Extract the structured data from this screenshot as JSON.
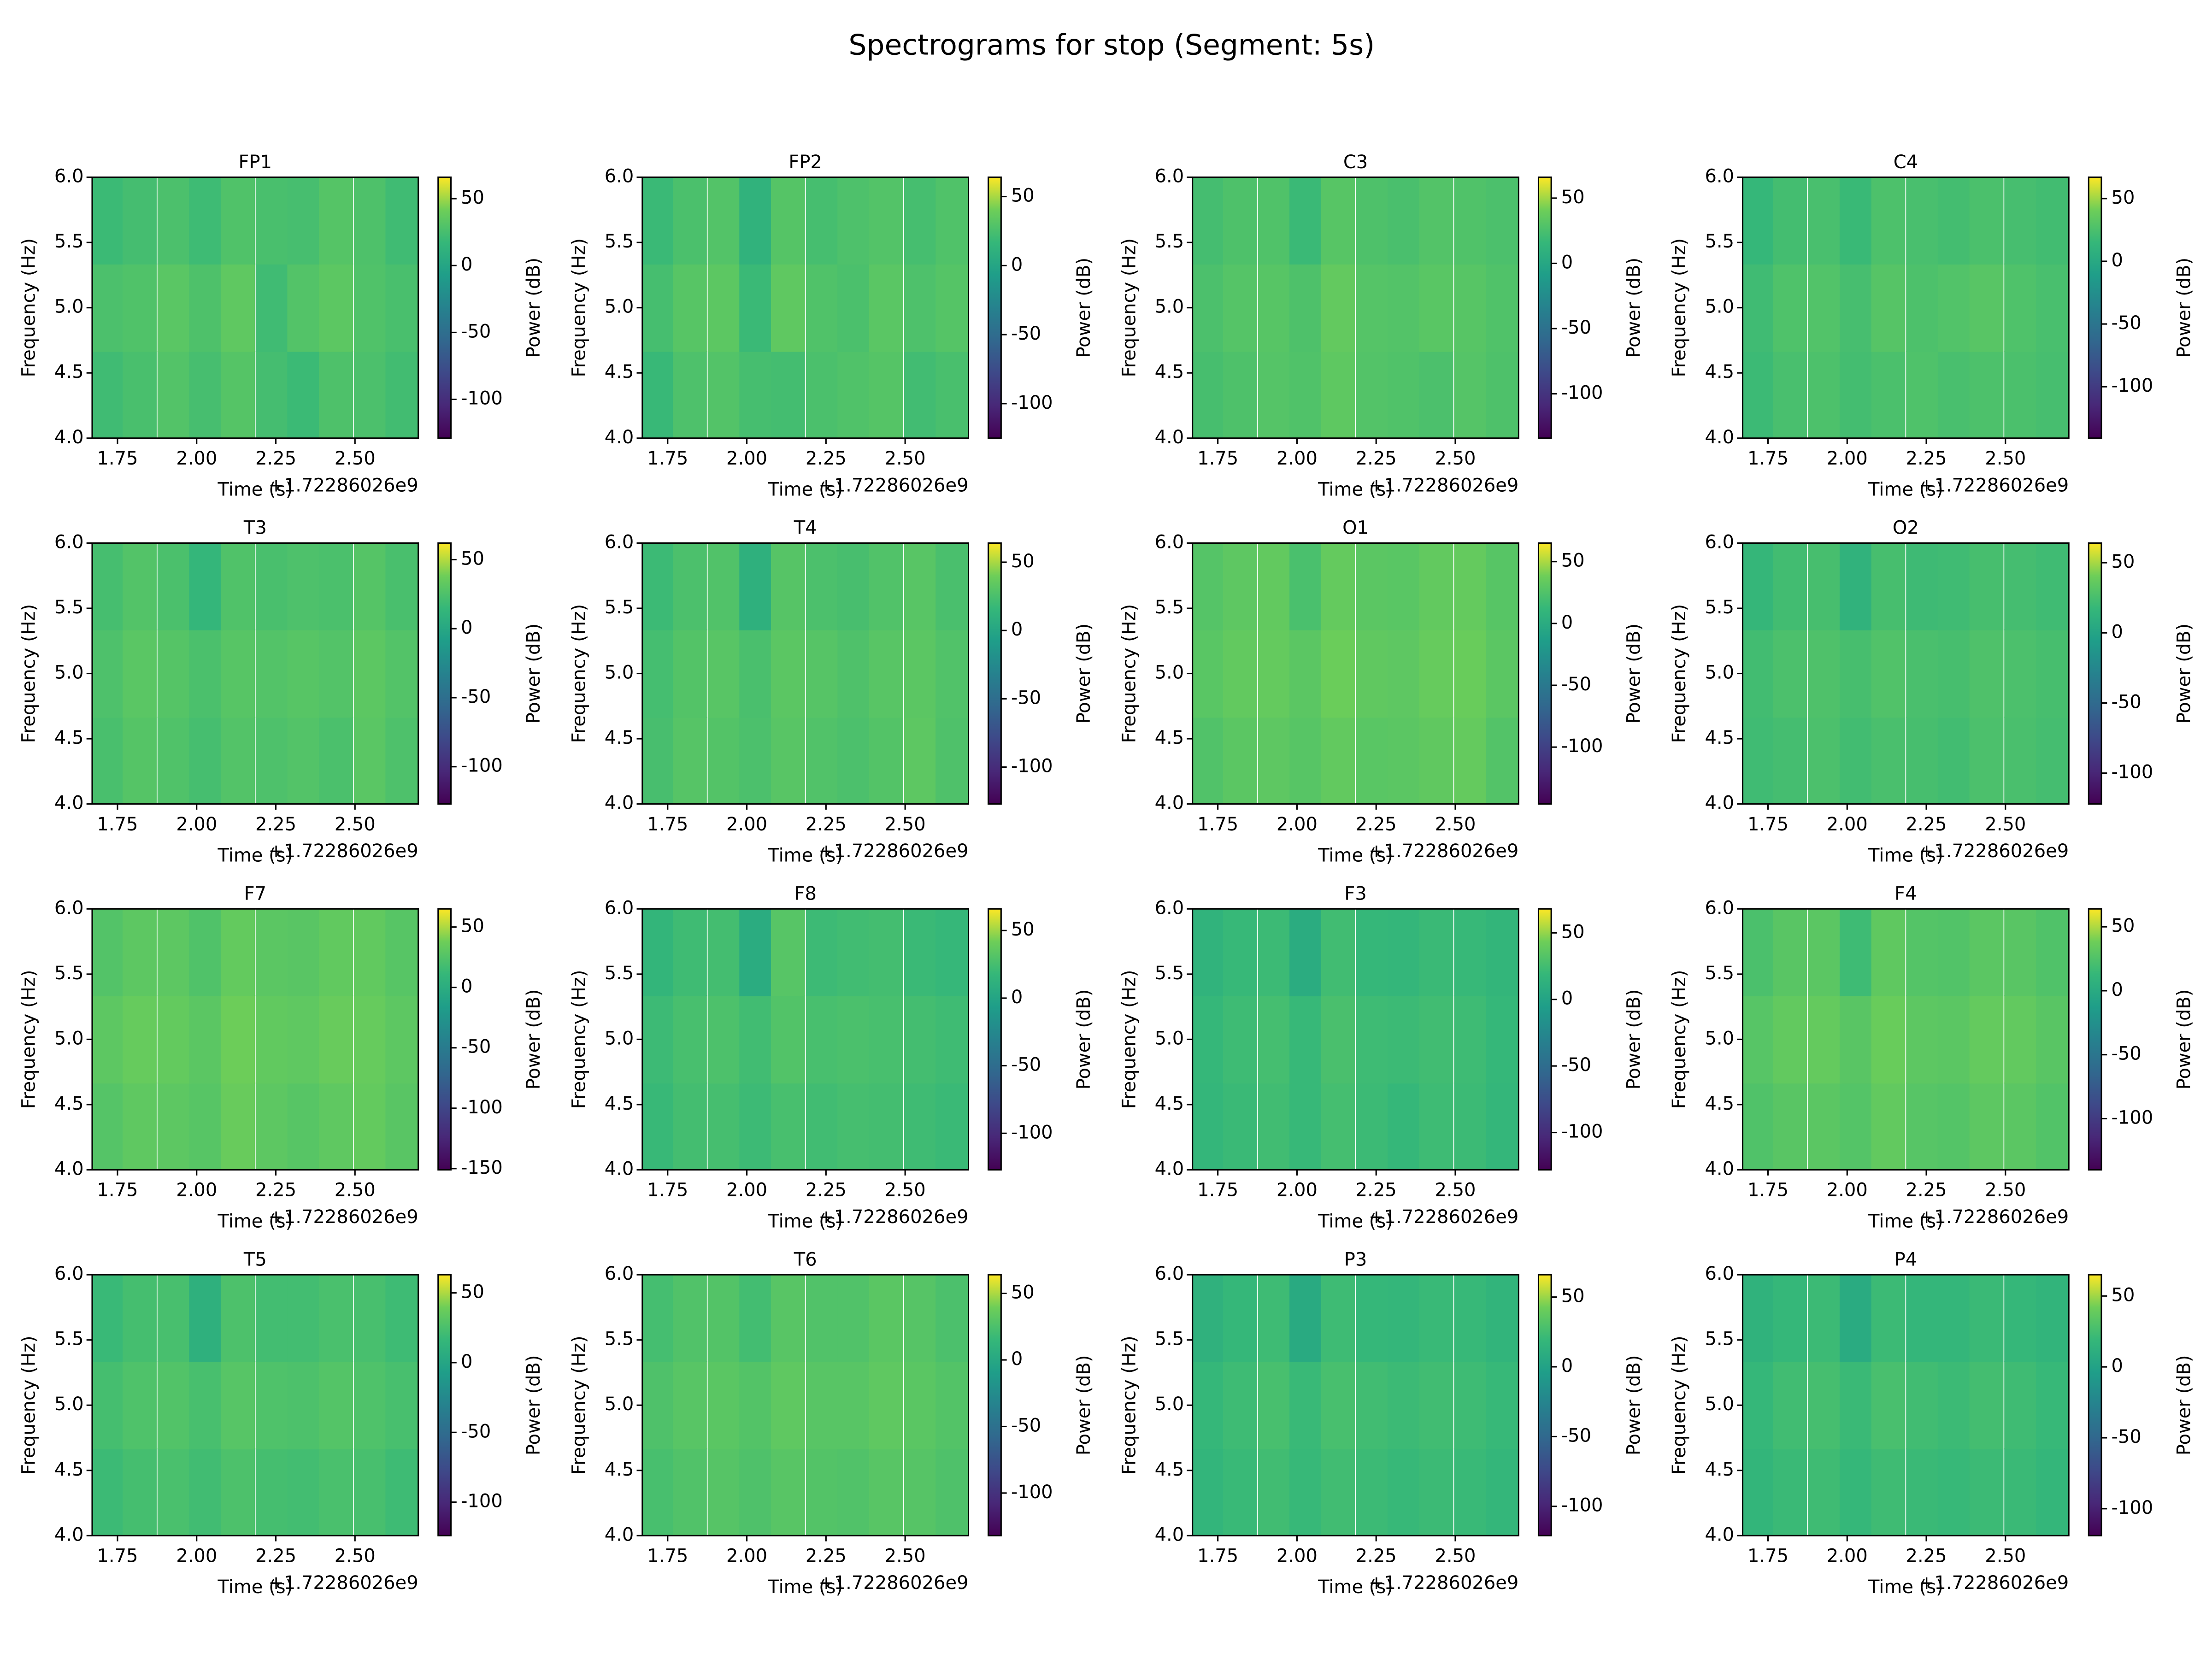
{
  "title": "Spectrograms for stop (Segment: 5s)",
  "labels": {
    "x": "Time (s)",
    "y": "Frequency (Hz)",
    "colorbar": "Power (dB)",
    "x_offset": "+1.72286026e9"
  },
  "colormap": [
    "#440154",
    "#482878",
    "#3e4989",
    "#31688e",
    "#26828e",
    "#1f9e89",
    "#35b779",
    "#6ece58",
    "#fde725"
  ],
  "axes": {
    "x": [
      1.72,
      1.82,
      1.93,
      2.03,
      2.13,
      2.24,
      2.34,
      2.44,
      2.55,
      2.65
    ],
    "y": [
      4.33,
      5.0,
      5.67
    ],
    "xlim": [
      1.67,
      2.7
    ],
    "xticks": [
      1.75,
      {
        "value": 2,
        "label": "2.00"
      },
      2.25,
      {
        "value": 2.5,
        "label": "2.50"
      }
    ],
    "ylim": [
      4,
      6
    ],
    "yticks": [
      {
        "value": 4,
        "label": "4.0"
      },
      4.5,
      {
        "value": 5,
        "label": "5.0"
      },
      5.5,
      {
        "value": 6,
        "label": "6.0"
      }
    ]
  },
  "chart_data": [
    {
      "type": "heatmap",
      "title": "FP1",
      "clim": [
        -129,
        66
      ],
      "cticks": [
        50,
        0,
        -50,
        -100
      ],
      "z": [
        [
          22,
          26,
          30,
          25,
          31,
          24,
          20,
          28,
          27,
          23
        ],
        [
          27,
          29,
          33,
          28,
          35,
          22,
          30,
          34,
          29,
          26
        ],
        [
          20,
          24,
          27,
          21,
          29,
          26,
          25,
          31,
          28,
          22
        ]
      ]
    },
    {
      "type": "heatmap",
      "title": "FP2",
      "clim": [
        -125,
        64
      ],
      "cticks": [
        50,
        0,
        -50,
        -100
      ],
      "z": [
        [
          18,
          27,
          29,
          24,
          23,
          26,
          28,
          30,
          22,
          25
        ],
        [
          24,
          31,
          33,
          19,
          34,
          28,
          26,
          32,
          27,
          30
        ],
        [
          19,
          26,
          29,
          12,
          30,
          24,
          27,
          29,
          24,
          28
        ]
      ]
    },
    {
      "type": "heatmap",
      "title": "C3",
      "clim": [
        -134,
        66
      ],
      "cticks": [
        50,
        0,
        -50,
        -100
      ],
      "z": [
        [
          24,
          27,
          30,
          28,
          34,
          29,
          28,
          26,
          30,
          27
        ],
        [
          26,
          30,
          31,
          27,
          36,
          30,
          29,
          32,
          31,
          28
        ],
        [
          23,
          27,
          28,
          18,
          31,
          27,
          25,
          29,
          28,
          26
        ]
      ]
    },
    {
      "type": "heatmap",
      "title": "C4",
      "clim": [
        -141,
        67
      ],
      "cticks": [
        50,
        0,
        -50,
        -100
      ],
      "z": [
        [
          18,
          24,
          26,
          22,
          25,
          27,
          24,
          26,
          25,
          23
        ],
        [
          20,
          27,
          28,
          23,
          30,
          26,
          28,
          31,
          27,
          24
        ],
        [
          15,
          22,
          24,
          17,
          26,
          24,
          22,
          25,
          23,
          21
        ]
      ]
    },
    {
      "type": "heatmap",
      "title": "T3",
      "clim": [
        -127,
        62
      ],
      "cticks": [
        50,
        0,
        -50,
        -100
      ],
      "z": [
        [
          23,
          28,
          26,
          22,
          27,
          25,
          27,
          24,
          30,
          25
        ],
        [
          25,
          30,
          28,
          24,
          29,
          27,
          29,
          27,
          31,
          27
        ],
        [
          22,
          27,
          24,
          14,
          26,
          23,
          25,
          24,
          28,
          23
        ]
      ]
    },
    {
      "type": "heatmap",
      "title": "T4",
      "clim": [
        -127,
        64
      ],
      "cticks": [
        50,
        0,
        -50,
        -100
      ],
      "z": [
        [
          24,
          30,
          29,
          26,
          31,
          28,
          26,
          29,
          33,
          27
        ],
        [
          23,
          29,
          31,
          25,
          32,
          30,
          27,
          31,
          32,
          28
        ],
        [
          19,
          26,
          28,
          10,
          30,
          26,
          24,
          28,
          31,
          25
        ]
      ]
    },
    {
      "type": "heatmap",
      "title": "O1",
      "clim": [
        -146,
        65
      ],
      "cticks": [
        50,
        0,
        -50,
        -100
      ],
      "z": [
        [
          25,
          30,
          31,
          28,
          33,
          29,
          30,
          32,
          34,
          26
        ],
        [
          29,
          33,
          34,
          30,
          37,
          32,
          31,
          35,
          36,
          30
        ],
        [
          27,
          31,
          33,
          22,
          34,
          30,
          29,
          33,
          34,
          28
        ]
      ]
    },
    {
      "type": "heatmap",
      "title": "O2",
      "clim": [
        -122,
        64
      ],
      "cticks": [
        50,
        0,
        -50,
        -100
      ],
      "z": [
        [
          22,
          24,
          27,
          23,
          26,
          25,
          23,
          27,
          26,
          24
        ],
        [
          23,
          27,
          28,
          25,
          29,
          26,
          25,
          28,
          27,
          25
        ],
        [
          17,
          23,
          25,
          13,
          25,
          21,
          22,
          25,
          24,
          22
        ]
      ]
    },
    {
      "type": "heatmap",
      "title": "F7",
      "clim": [
        -151,
        65
      ],
      "cticks": [
        50,
        0,
        -50,
        -100,
        -150
      ],
      "z": [
        [
          26,
          31,
          30,
          27,
          35,
          30,
          27,
          31,
          33,
          28
        ],
        [
          30,
          34,
          33,
          29,
          37,
          32,
          31,
          35,
          34,
          30
        ],
        [
          25,
          30,
          30,
          24,
          33,
          29,
          28,
          32,
          32,
          27
        ]
      ]
    },
    {
      "type": "heatmap",
      "title": "F8",
      "clim": [
        -127,
        66
      ],
      "cticks": [
        50,
        0,
        -50,
        -100
      ],
      "z": [
        [
          19,
          24,
          25,
          21,
          26,
          23,
          25,
          24,
          22,
          20
        ],
        [
          21,
          26,
          28,
          23,
          30,
          26,
          27,
          26,
          24,
          22
        ],
        [
          16,
          22,
          24,
          7,
          32,
          21,
          23,
          24,
          20,
          18
        ]
      ]
    },
    {
      "type": "heatmap",
      "title": "F3",
      "clim": [
        -128,
        68
      ],
      "cticks": [
        50,
        0,
        -50,
        -100
      ],
      "z": [
        [
          18,
          21,
          24,
          20,
          26,
          22,
          19,
          23,
          22,
          18
        ],
        [
          19,
          23,
          26,
          20,
          28,
          23,
          22,
          24,
          23,
          19
        ],
        [
          15,
          20,
          22,
          8,
          24,
          19,
          18,
          21,
          20,
          17
        ]
      ]
    },
    {
      "type": "heatmap",
      "title": "F4",
      "clim": [
        -140,
        64
      ],
      "cticks": [
        50,
        0,
        -50,
        -100
      ],
      "z": [
        [
          25,
          29,
          30,
          27,
          33,
          28,
          27,
          31,
          30,
          26
        ],
        [
          28,
          33,
          34,
          29,
          36,
          31,
          30,
          34,
          33,
          29
        ],
        [
          23,
          29,
          30,
          17,
          32,
          27,
          26,
          30,
          29,
          25
        ]
      ]
    },
    {
      "type": "heatmap",
      "title": "T5",
      "clim": [
        -124,
        63
      ],
      "cticks": [
        50,
        0,
        -50,
        -100
      ],
      "z": [
        [
          19,
          23,
          25,
          21,
          26,
          23,
          22,
          25,
          24,
          20
        ],
        [
          23,
          27,
          28,
          24,
          30,
          27,
          26,
          29,
          27,
          24
        ],
        [
          18,
          23,
          24,
          10,
          26,
          22,
          22,
          25,
          24,
          20
        ]
      ]
    },
    {
      "type": "heatmap",
      "title": "T6",
      "clim": [
        -132,
        64
      ],
      "cticks": [
        50,
        0,
        -50,
        -100
      ],
      "z": [
        [
          23,
          27,
          29,
          26,
          30,
          28,
          27,
          30,
          29,
          26
        ],
        [
          26,
          30,
          31,
          28,
          33,
          30,
          30,
          33,
          31,
          28
        ],
        [
          22,
          27,
          28,
          21,
          30,
          27,
          27,
          31,
          29,
          25
        ]
      ]
    },
    {
      "type": "heatmap",
      "title": "P3",
      "clim": [
        -121,
        66
      ],
      "cticks": [
        50,
        0,
        -50,
        -100
      ],
      "z": [
        [
          17,
          21,
          24,
          20,
          24,
          22,
          20,
          22,
          21,
          18
        ],
        [
          19,
          23,
          27,
          21,
          27,
          24,
          22,
          24,
          23,
          20
        ],
        [
          14,
          19,
          23,
          7,
          23,
          19,
          18,
          21,
          20,
          16
        ]
      ]
    },
    {
      "type": "heatmap",
      "title": "P4",
      "clim": [
        -119,
        65
      ],
      "cticks": [
        50,
        0,
        -50,
        -100
      ],
      "z": [
        [
          17,
          21,
          23,
          19,
          23,
          21,
          20,
          22,
          21,
          18
        ],
        [
          19,
          24,
          26,
          21,
          27,
          24,
          22,
          25,
          23,
          20
        ],
        [
          14,
          19,
          22,
          8,
          22,
          18,
          18,
          21,
          19,
          16
        ]
      ]
    }
  ]
}
